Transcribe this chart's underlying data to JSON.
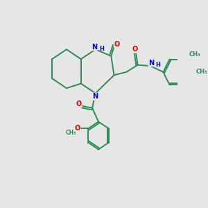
{
  "bg_color": "#e6e6e6",
  "bond_color": "#2e8b57",
  "n_color": "#0000cd",
  "o_color": "#dd0000",
  "line_width": 1.4,
  "font_size": 7.0,
  "xlim": [
    0,
    10
  ],
  "ylim": [
    0,
    10
  ]
}
